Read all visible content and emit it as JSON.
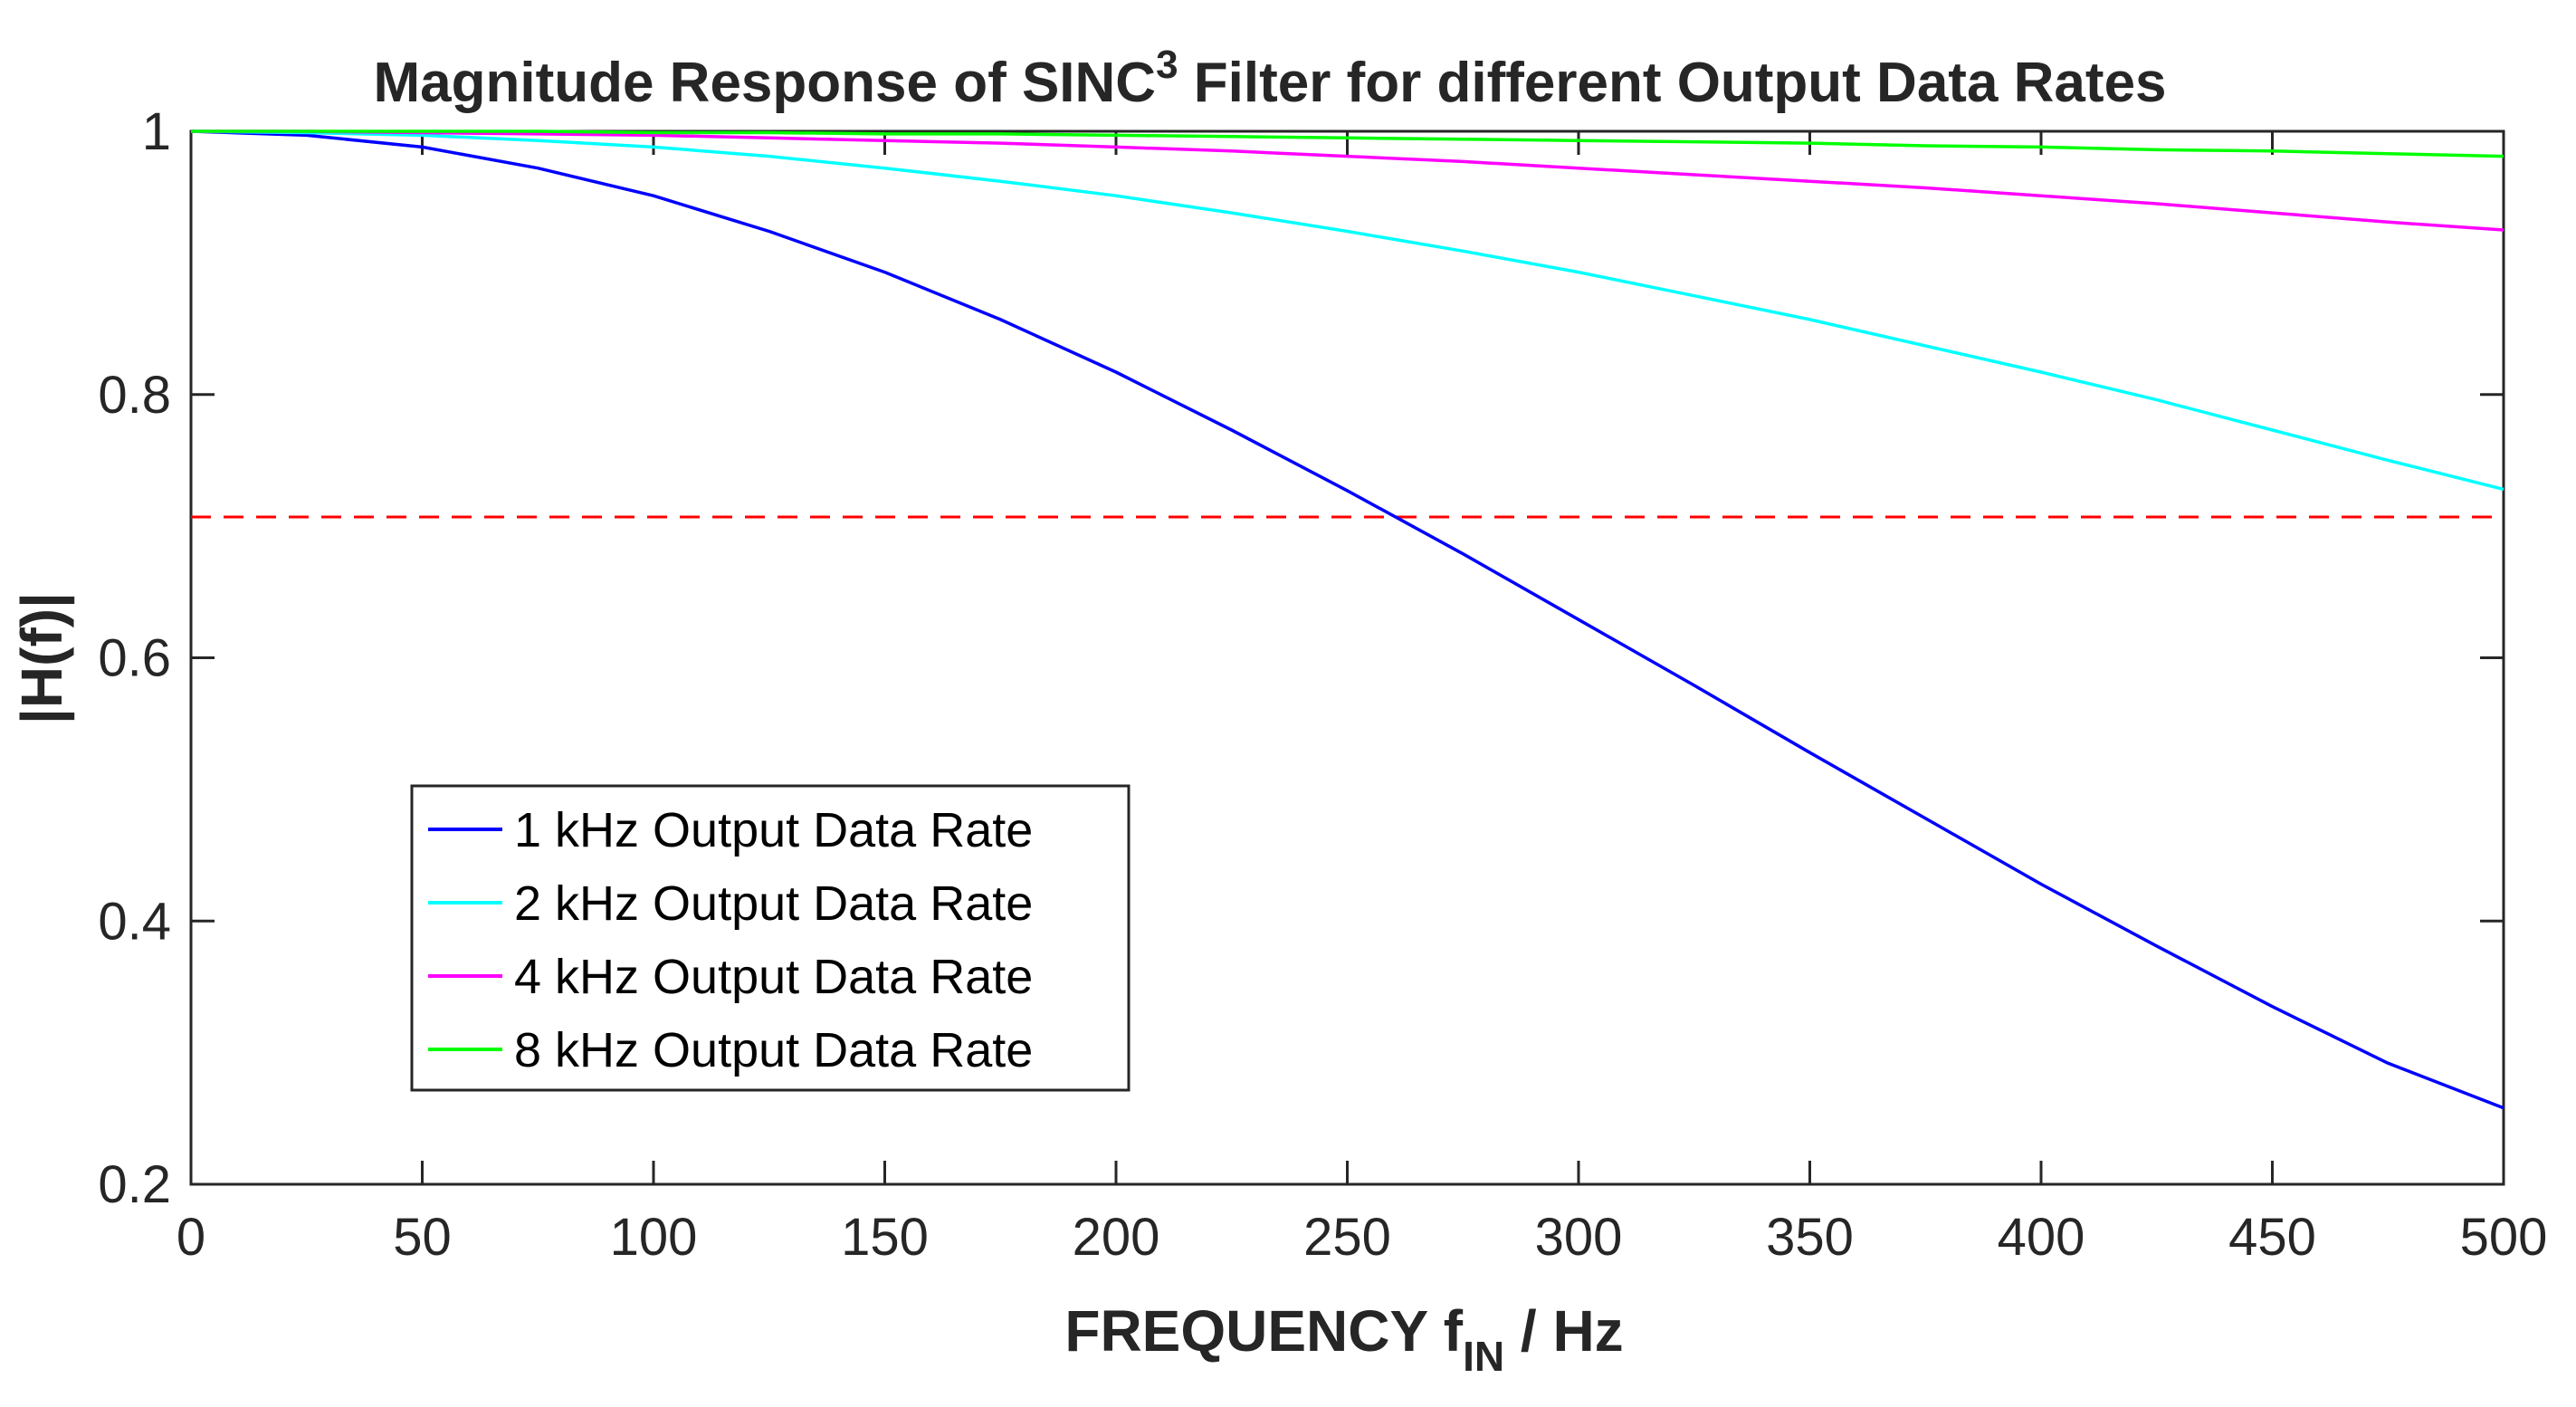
{
  "chart_data": {
    "type": "line",
    "title_main": "Magnitude Response of SINC",
    "title_superscript": "3",
    "title_rest": " Filter for different Output Data Rates",
    "xlabel_main": "FREQUENCY f",
    "xlabel_subscript": "IN",
    "xlabel_rest": " / Hz",
    "ylabel": "|H(f)|",
    "xlim": [
      0,
      500
    ],
    "ylim": [
      0.2,
      1
    ],
    "x_ticks": [
      "0",
      "50",
      "100",
      "150",
      "200",
      "250",
      "300",
      "350",
      "400",
      "450",
      "500"
    ],
    "y_ticks": [
      "0.2",
      "0.4",
      "0.6",
      "0.8",
      "1"
    ],
    "x": [
      0,
      25,
      50,
      75,
      100,
      125,
      150,
      175,
      200,
      225,
      250,
      275,
      300,
      325,
      350,
      375,
      400,
      425,
      450,
      475,
      500
    ],
    "series": [
      {
        "name": "1 kHz Output Data Rate",
        "color": "#0000ff",
        "values": [
          1.0,
          0.997,
          0.988,
          0.972,
          0.951,
          0.924,
          0.893,
          0.857,
          0.817,
          0.773,
          0.727,
          0.679,
          0.629,
          0.579,
          0.528,
          0.478,
          0.428,
          0.381,
          0.335,
          0.292,
          0.258
        ]
      },
      {
        "name": "2 kHz Output Data Rate",
        "color": "#00ffff",
        "values": [
          1.0,
          0.999,
          0.997,
          0.993,
          0.988,
          0.981,
          0.972,
          0.962,
          0.951,
          0.938,
          0.924,
          0.909,
          0.893,
          0.875,
          0.857,
          0.837,
          0.817,
          0.796,
          0.773,
          0.75,
          0.728
        ]
      },
      {
        "name": "4 kHz Output Data Rate",
        "color": "#ff00ff",
        "values": [
          1.0,
          1.0,
          0.999,
          0.998,
          0.997,
          0.995,
          0.993,
          0.991,
          0.988,
          0.985,
          0.981,
          0.977,
          0.972,
          0.967,
          0.962,
          0.957,
          0.951,
          0.945,
          0.938,
          0.931,
          0.925
        ]
      },
      {
        "name": "8 kHz Output Data Rate",
        "color": "#00ff00",
        "values": [
          1.0,
          1.0,
          1.0,
          1.0,
          0.999,
          0.999,
          0.998,
          0.998,
          0.997,
          0.996,
          0.995,
          0.994,
          0.993,
          0.992,
          0.991,
          0.989,
          0.988,
          0.986,
          0.985,
          0.983,
          0.981
        ]
      }
    ],
    "reference_line": {
      "y": 0.707,
      "color": "#ff0000",
      "style": "dashed"
    },
    "legend_position": "lower-left",
    "grid": false
  }
}
